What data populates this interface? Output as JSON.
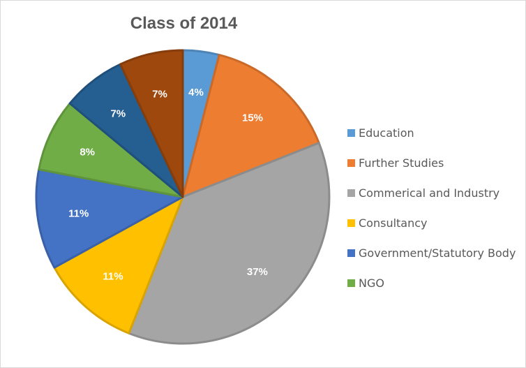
{
  "chart_data": {
    "type": "pie",
    "title": "Class of 2014",
    "categories": [
      "Education",
      "Further Studies",
      "Commerical and Industry",
      "Consultancy",
      "Government/Statutory Body",
      "NGO",
      "",
      ""
    ],
    "values": [
      4,
      15,
      37,
      11,
      11,
      8,
      7,
      7
    ],
    "labels": [
      "4%",
      "15%",
      "37%",
      "11%",
      "11%",
      "8%",
      "7%",
      "7%"
    ],
    "colors": [
      "#5B9BD5",
      "#ED7D31",
      "#A5A5A5",
      "#FFC000",
      "#4472C4",
      "#70AD47",
      "#255E91",
      "#9E480E"
    ],
    "legend_count": 6,
    "legend_position": "right"
  }
}
